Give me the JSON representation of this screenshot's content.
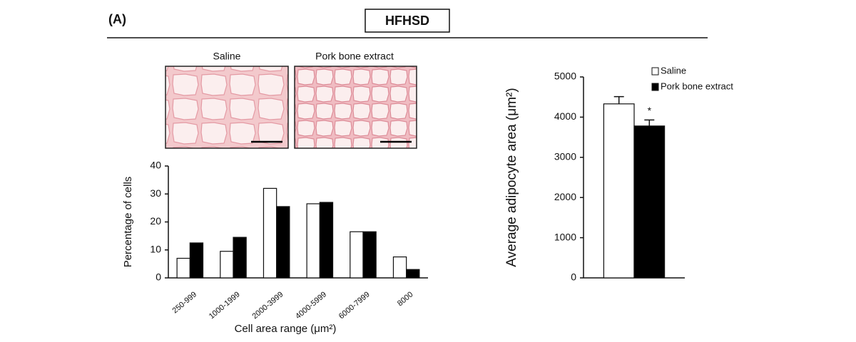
{
  "figure": {
    "panel_label": "(A)",
    "title": "HFHSD",
    "image_labels": [
      "Saline",
      "Pork bone extract"
    ]
  },
  "chart_data": [
    {
      "type": "bar",
      "categories": [
        "250-999",
        "1000-1999",
        "2000-3999",
        "4000-5999",
        "6000-7999",
        "8000"
      ],
      "series": [
        {
          "color": "#ffffff",
          "values": [
            7,
            9.5,
            32,
            26.5,
            16.5,
            7.5
          ]
        },
        {
          "color": "#000000",
          "values": [
            12.5,
            14.5,
            25.5,
            27,
            16.5,
            3
          ]
        }
      ],
      "ylim": [
        0,
        40
      ],
      "yticks": [
        0,
        10,
        20,
        30,
        40
      ],
      "grid": false,
      "y_label": "Percentage of cells",
      "x_label": "Cell area range (μm²)"
    },
    {
      "type": "bar",
      "categories": [
        null
      ],
      "series": [
        {
          "name": "Saline",
          "color": "#ffffff",
          "values": [
            4330
          ],
          "errors": [
            180
          ]
        },
        {
          "name": "Pork bone extract",
          "color": "#000000",
          "values": [
            3780
          ],
          "errors": [
            150
          ]
        }
      ],
      "ylim": [
        0,
        5000
      ],
      "yticks": [
        0,
        1000,
        2000,
        3000,
        4000,
        5000
      ],
      "grid": false,
      "y_label": "Average adipocyte area (μm²)",
      "annotation": "*",
      "legend": "top-right"
    }
  ]
}
